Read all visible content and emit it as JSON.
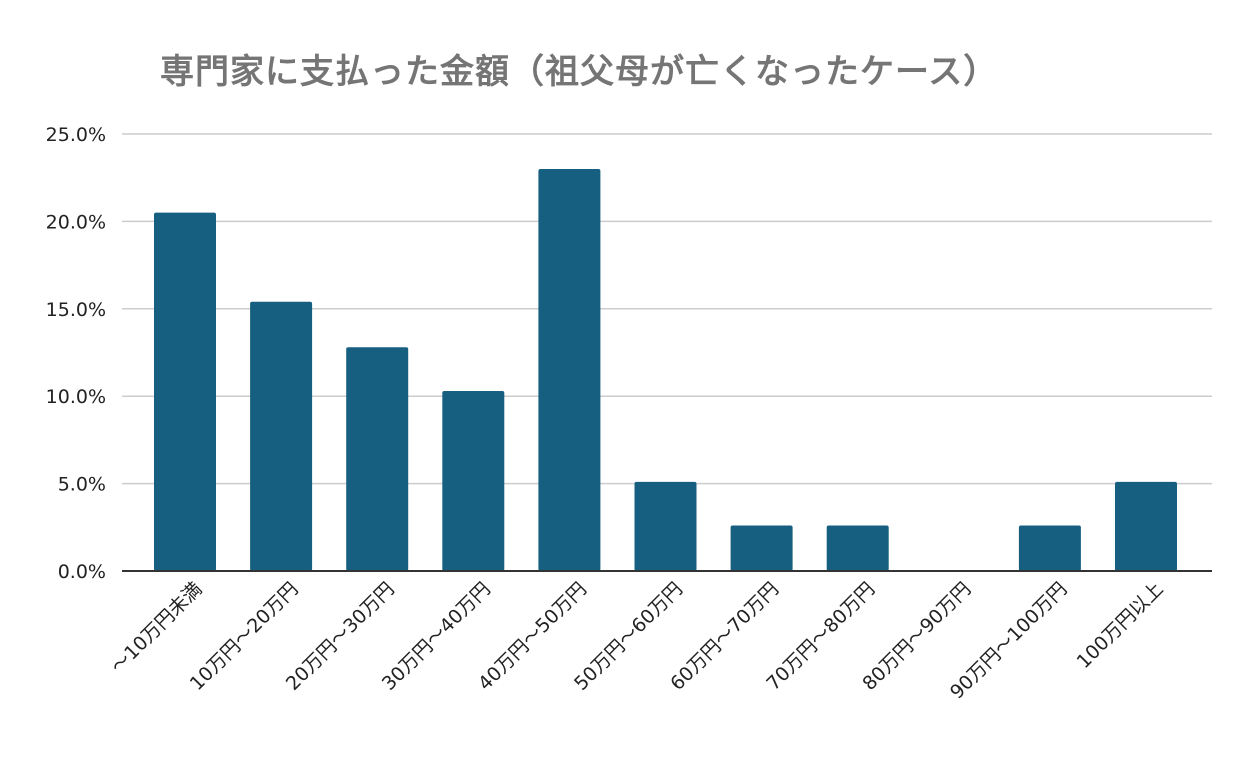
{
  "chart_data": {
    "type": "bar",
    "title": "専門家に支払った金額（祖父母が亡くなったケース）",
    "xlabel": "",
    "ylabel": "",
    "categories": [
      "～10万円未満",
      "10万円～20万円",
      "20万円～30万円",
      "30万円～40万円",
      "40万円～50万円",
      "50万円～60万円",
      "60万円～70万円",
      "70万円～80万円",
      "80万円～90万円",
      "90万円～100万円",
      "100万円以上"
    ],
    "values": [
      20.5,
      15.4,
      12.8,
      10.3,
      23.0,
      5.1,
      2.6,
      2.6,
      0.0,
      2.6,
      5.1
    ],
    "ylim": [
      0,
      25
    ],
    "yticks": [
      "0.0%",
      "5.0%",
      "10.0%",
      "15.0%",
      "20.0%",
      "25.0%"
    ],
    "grid": true,
    "legend": "none",
    "bar_color": "#175f80"
  }
}
